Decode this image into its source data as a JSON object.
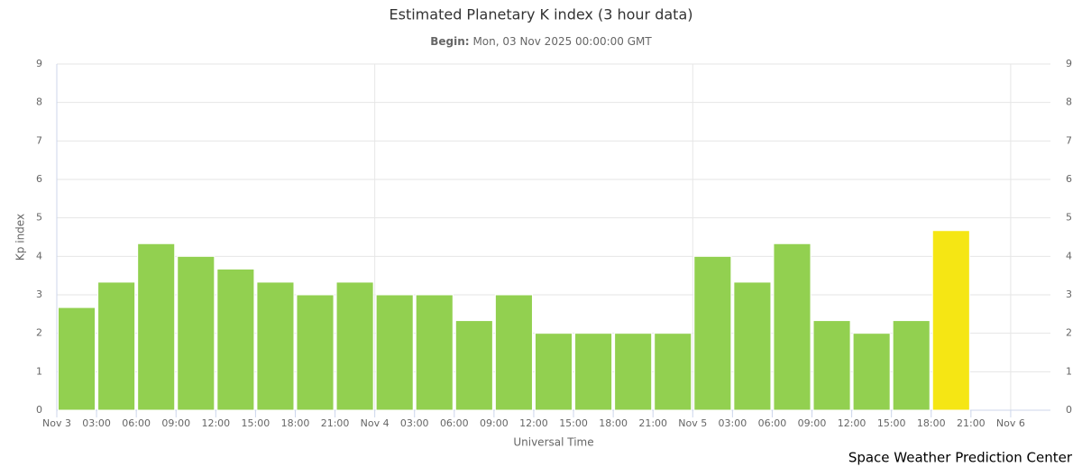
{
  "chart_data": {
    "type": "bar",
    "title": "Estimated Planetary K index (3 hour data)",
    "subtitle_label": "Begin:",
    "subtitle": "Mon, 03 Nov 2025 00:00:00 GMT",
    "x_label": "Universal Time",
    "y_label": "Kp index",
    "credit": "Space Weather Prediction Center",
    "x": [
      0,
      3,
      6,
      9,
      12,
      15,
      18,
      21,
      24,
      27,
      30,
      33,
      36,
      39,
      42,
      45,
      48,
      51,
      54,
      57,
      60,
      63,
      66
    ],
    "values": [
      2.67,
      3.33,
      4.33,
      4,
      3.67,
      3.33,
      3,
      3.33,
      3,
      3,
      2.33,
      3,
      2,
      2,
      2,
      2,
      4,
      3.33,
      4.33,
      2.33,
      2,
      2.33,
      4.67
    ],
    "colors": [
      "#92d050",
      "#92d050",
      "#92d050",
      "#92d050",
      "#92d050",
      "#92d050",
      "#92d050",
      "#92d050",
      "#92d050",
      "#92d050",
      "#92d050",
      "#92d050",
      "#92d050",
      "#92d050",
      "#92d050",
      "#92d050",
      "#92d050",
      "#92d050",
      "#92d050",
      "#92d050",
      "#92d050",
      "#92d050",
      "#f5e614"
    ],
    "bar_width": 3,
    "xlim": [
      0,
      75
    ],
    "xticks": [
      {
        "value": 0,
        "label": "Nov 3"
      },
      {
        "value": 3,
        "label": "03:00"
      },
      {
        "value": 6,
        "label": "06:00"
      },
      {
        "value": 9,
        "label": "09:00"
      },
      {
        "value": 12,
        "label": "12:00"
      },
      {
        "value": 15,
        "label": "15:00"
      },
      {
        "value": 18,
        "label": "18:00"
      },
      {
        "value": 21,
        "label": "21:00"
      },
      {
        "value": 24,
        "label": "Nov 4"
      },
      {
        "value": 27,
        "label": "03:00"
      },
      {
        "value": 30,
        "label": "06:00"
      },
      {
        "value": 33,
        "label": "09:00"
      },
      {
        "value": 36,
        "label": "12:00"
      },
      {
        "value": 39,
        "label": "15:00"
      },
      {
        "value": 42,
        "label": "18:00"
      },
      {
        "value": 45,
        "label": "21:00"
      },
      {
        "value": 48,
        "label": "Nov 5"
      },
      {
        "value": 51,
        "label": "03:00"
      },
      {
        "value": 54,
        "label": "06:00"
      },
      {
        "value": 57,
        "label": "09:00"
      },
      {
        "value": 60,
        "label": "12:00"
      },
      {
        "value": 63,
        "label": "15:00"
      },
      {
        "value": 66,
        "label": "18:00"
      },
      {
        "value": 69,
        "label": "21:00"
      },
      {
        "value": 72,
        "label": "Nov 6"
      }
    ],
    "ylim": [
      0,
      9
    ],
    "yticks": [
      0,
      1,
      2,
      3,
      4,
      5,
      6,
      7,
      8,
      9
    ],
    "y2lim": [
      0,
      9
    ],
    "y2ticks": [
      0,
      1,
      2,
      3,
      4,
      5,
      6,
      7,
      8,
      9
    ],
    "grid": true
  }
}
